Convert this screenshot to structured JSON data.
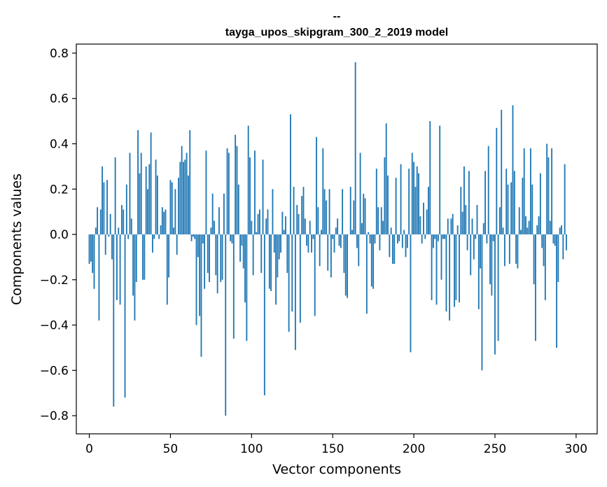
{
  "chart_data": {
    "type": "bar",
    "title_line1": "--",
    "title_line2": "tayga_upos_skipgram_300_2_2019 model",
    "xlabel": "Vector components",
    "ylabel": "Components values",
    "xlim": [
      -8,
      313
    ],
    "ylim": [
      -0.88,
      0.84
    ],
    "xticks": [
      0,
      50,
      100,
      150,
      200,
      250,
      300
    ],
    "yticks": [
      0.8,
      0.6,
      0.4,
      0.2,
      0.0,
      -0.2,
      -0.4,
      -0.6,
      -0.8
    ],
    "ytick_labels": [
      "0.8",
      "0.6",
      "0.4",
      "0.2",
      "0.0",
      "−0.2",
      "−0.4",
      "−0.6",
      "−0.8"
    ],
    "bar_color": "#1f77b4",
    "values": [
      -0.13,
      -0.12,
      -0.17,
      -0.24,
      0.03,
      0.12,
      -0.38,
      0.11,
      0.3,
      0.23,
      -0.09,
      0.24,
      -0.01,
      0.09,
      -0.11,
      -0.76,
      0.34,
      -0.29,
      0.03,
      -0.31,
      0.13,
      0.11,
      -0.72,
      0.22,
      -0.02,
      0.36,
      0.07,
      -0.27,
      -0.38,
      -0.21,
      0.46,
      0.27,
      0.36,
      -0.2,
      -0.2,
      0.3,
      0.2,
      0.31,
      0.45,
      -0.08,
      -0.02,
      0.33,
      0.26,
      -0.02,
      0.04,
      0.12,
      0.1,
      0.11,
      -0.31,
      -0.19,
      0.24,
      0.23,
      0.03,
      0.2,
      -0.09,
      0.25,
      0.32,
      0.39,
      0.32,
      0.33,
      0.36,
      0.26,
      0.46,
      -0.03,
      -0.01,
      -0.02,
      -0.4,
      -0.1,
      -0.36,
      -0.54,
      -0.04,
      -0.24,
      0.37,
      -0.17,
      -0.21,
      0.03,
      0.18,
      0.06,
      -0.18,
      -0.26,
      0.12,
      -0.21,
      -0.2,
      0.18,
      -0.8,
      0.38,
      0.36,
      -0.03,
      -0.04,
      -0.46,
      0.44,
      0.39,
      0.22,
      -0.12,
      -0.05,
      -0.15,
      -0.3,
      -0.47,
      0.48,
      0.34,
      0.06,
      -0.18,
      0.37,
      0.01,
      0.09,
      0.11,
      -0.17,
      0.33,
      -0.71,
      0.07,
      0.11,
      -0.24,
      -0.25,
      0.2,
      -0.08,
      -0.31,
      -0.19,
      -0.11,
      -0.08,
      0.1,
      0.02,
      0.08,
      -0.17,
      -0.43,
      0.53,
      -0.34,
      0.21,
      -0.51,
      0.13,
      0.09,
      -0.39,
      0.17,
      0.21,
      0.07,
      -0.05,
      -0.08,
      0.06,
      -0.08,
      -0.02,
      -0.36,
      0.43,
      0.12,
      -0.14,
      0.02,
      0.38,
      0.2,
      0.15,
      -0.16,
      0.2,
      -0.19,
      -0.02,
      -0.08,
      0.03,
      0.07,
      -0.05,
      -0.06,
      0.2,
      -0.17,
      -0.27,
      -0.28,
      0.0,
      0.21,
      0.02,
      0.15,
      0.76,
      -0.06,
      -0.14,
      0.36,
      0.05,
      0.18,
      0.16,
      -0.35,
      0.01,
      -0.04,
      -0.23,
      -0.24,
      -0.04,
      0.29,
      0.12,
      -0.07,
      0.12,
      0.06,
      0.34,
      0.49,
      0.26,
      -0.1,
      0.03,
      -0.13,
      -0.13,
      0.25,
      -0.04,
      -0.03,
      0.31,
      -0.06,
      0.02,
      -0.1,
      -0.06,
      0.29,
      -0.52,
      0.36,
      0.32,
      0.21,
      0.3,
      0.27,
      0.08,
      -0.04,
      0.14,
      -0.02,
      0.11,
      0.21,
      0.5,
      -0.29,
      -0.06,
      -0.02,
      -0.31,
      -0.03,
      0.48,
      -0.2,
      -0.02,
      -0.02,
      -0.34,
      0.07,
      -0.38,
      0.07,
      0.09,
      -0.32,
      -0.29,
      0.04,
      -0.3,
      0.21,
      0.1,
      0.3,
      0.13,
      -0.07,
      0.28,
      -0.18,
      0.07,
      -0.11,
      -0.02,
      0.13,
      -0.33,
      -0.15,
      -0.6,
      0.05,
      0.28,
      -0.04,
      0.39,
      -0.22,
      -0.27,
      -0.03,
      -0.53,
      0.47,
      -0.47,
      0.12,
      0.55,
      0.03,
      -0.14,
      0.29,
      0.22,
      -0.13,
      0.23,
      0.57,
      0.28,
      -0.13,
      -0.15,
      0.12,
      0.02,
      0.25,
      0.38,
      0.08,
      0.03,
      0.06,
      0.38,
      0.22,
      -0.22,
      -0.47,
      0.04,
      0.08,
      0.27,
      -0.06,
      -0.14,
      -0.29,
      0.4,
      0.34,
      0.06,
      0.38,
      -0.04,
      -0.05,
      -0.5,
      -0.21,
      0.03,
      0.04,
      -0.11,
      0.31,
      -0.07
    ]
  }
}
